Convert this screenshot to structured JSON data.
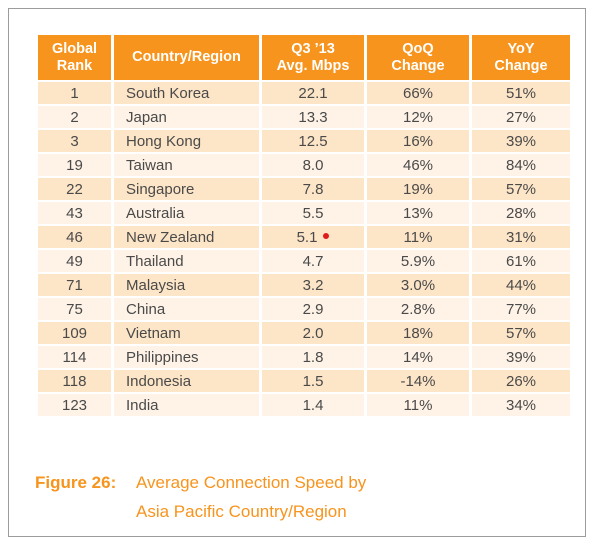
{
  "table": {
    "headers": [
      [
        "Global",
        "Rank"
      ],
      [
        "Country/Region"
      ],
      [
        "Q3 ’13",
        "Avg. Mbps"
      ],
      [
        "QoQ",
        "Change"
      ],
      [
        "YoY",
        "Change"
      ]
    ],
    "rows": [
      {
        "rank": "1",
        "country": "South Korea",
        "speed": "22.1",
        "qoq": "66%",
        "yoy": "51%"
      },
      {
        "rank": "2",
        "country": "Japan",
        "speed": "13.3",
        "qoq": "12%",
        "yoy": "27%"
      },
      {
        "rank": "3",
        "country": "Hong Kong",
        "speed": "12.5",
        "qoq": "16%",
        "yoy": "39%"
      },
      {
        "rank": "19",
        "country": "Taiwan",
        "speed": "8.0",
        "qoq": "46%",
        "yoy": "84%"
      },
      {
        "rank": "22",
        "country": "Singapore",
        "speed": "7.8",
        "qoq": "19%",
        "yoy": "57%"
      },
      {
        "rank": "43",
        "country": "Australia",
        "speed": "5.5",
        "qoq": "13%",
        "yoy": "28%"
      },
      {
        "rank": "46",
        "country": "New Zealand",
        "speed": "5.1",
        "qoq": "11%",
        "yoy": "31%",
        "marker": true
      },
      {
        "rank": "49",
        "country": "Thailand",
        "speed": "4.7",
        "qoq": "5.9%",
        "yoy": "61%"
      },
      {
        "rank": "71",
        "country": "Malaysia",
        "speed": "3.2",
        "qoq": "3.0%",
        "yoy": "44%"
      },
      {
        "rank": "75",
        "country": "China",
        "speed": "2.9",
        "qoq": "2.8%",
        "yoy": "77%"
      },
      {
        "rank": "109",
        "country": "Vietnam",
        "speed": "2.0",
        "qoq": "18%",
        "yoy": "57%"
      },
      {
        "rank": "114",
        "country": "Philippines",
        "speed": "1.8",
        "qoq": "14%",
        "yoy": "39%"
      },
      {
        "rank": "118",
        "country": "Indonesia",
        "speed": "1.5",
        "qoq": "-14%",
        "yoy": "26%"
      },
      {
        "rank": "123",
        "country": "India",
        "speed": "1.4",
        "qoq": "11%",
        "yoy": "34%"
      }
    ]
  },
  "caption": {
    "label": "Figure 26:",
    "line1": "Average Connection Speed by",
    "line2": "Asia Pacific Country/Region"
  },
  "colors": {
    "header_bg": "#f7941d",
    "row_dark": "#fde5c7",
    "row_light": "#fef3e6",
    "marker": "#e01b1b",
    "caption": "#f7941d"
  }
}
